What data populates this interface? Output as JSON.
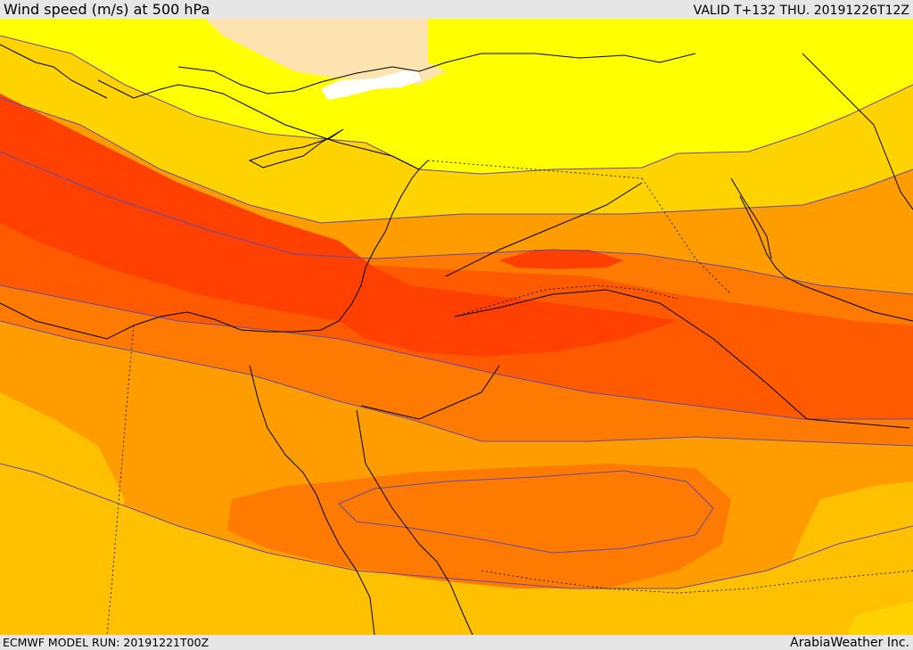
{
  "header": {
    "title": "Wind speed (m/s) at 500 hPa",
    "valid_time": "VALID T+132 THU. 20191226T12Z"
  },
  "footer": {
    "model_run": "ECMWF MODEL RUN: 20191221T00Z",
    "credit": "ArabiaWeather Inc."
  },
  "colors": {
    "band_lightest": "#fde3b0",
    "band_yellow": "#ffff00",
    "band_gold": "#ffd300",
    "band_amber": "#ffc000",
    "band_orange": "#ff9d00",
    "band_dark_orange": "#ff7a00",
    "band_red_orange": "#ff5a00",
    "band_red": "#ff4000",
    "sea_white": "#ffffff",
    "coastline": "#000000",
    "contour": "#6b4aa0"
  },
  "icons": [
    "coastline-lines",
    "border-lines",
    "wind-speed-contours"
  ]
}
